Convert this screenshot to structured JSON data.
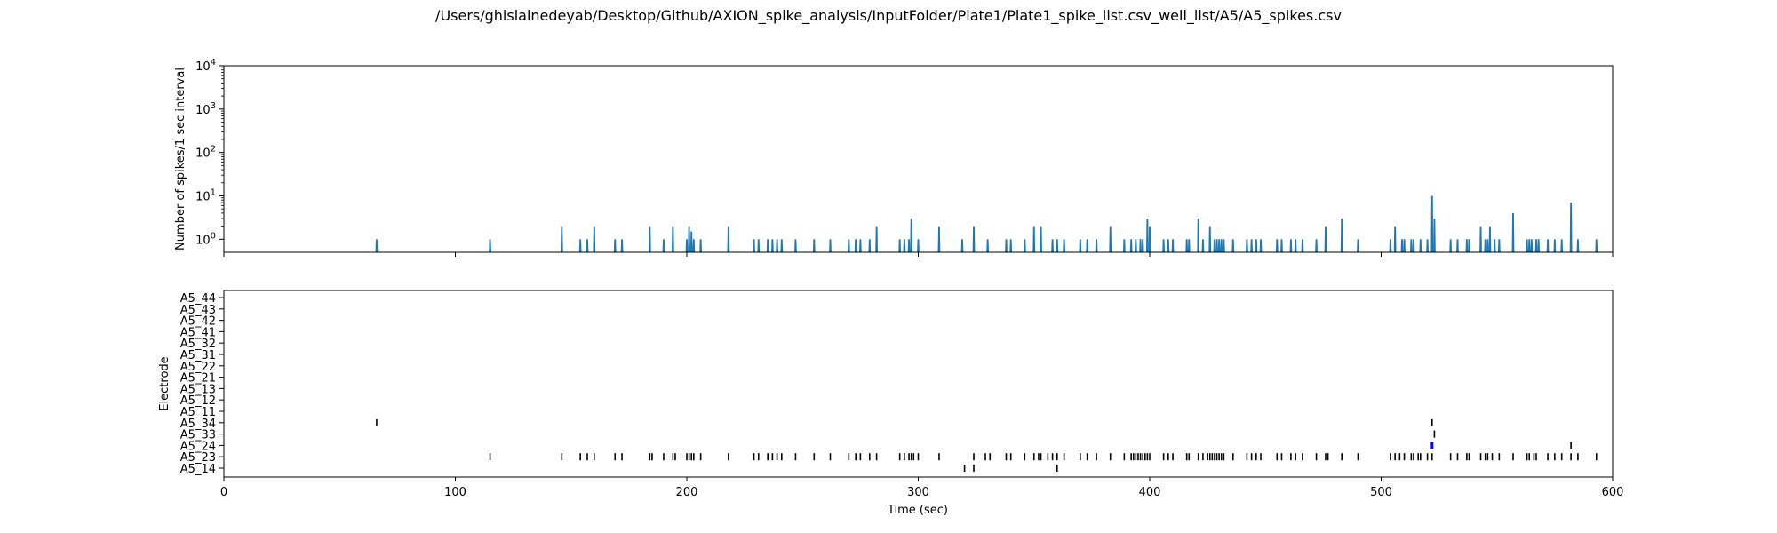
{
  "chart_data": [
    {
      "type": "line",
      "title": "/Users/ghislainedeyab/Desktop/Github/AXION_spike_analysis/InputFolder/Plate1/Plate1_spike_list.csv_well_list/A5/A5_spikes.csv",
      "xlabel": "",
      "ylabel": "Number of spikes/1 sec interval",
      "yscale": "log",
      "xlim": [
        0,
        600
      ],
      "ylim": [
        0.5,
        10000
      ],
      "y_ticks": [
        {
          "base": "10",
          "exp": "0",
          "value": 1
        },
        {
          "base": "10",
          "exp": "1",
          "value": 10
        },
        {
          "base": "10",
          "exp": "2",
          "value": 100
        },
        {
          "base": "10",
          "exp": "3",
          "value": 1000
        },
        {
          "base": "10",
          "exp": "4",
          "value": 10000
        }
      ],
      "color": "#1f77b4",
      "bins": [
        [
          66,
          1
        ],
        [
          115,
          1
        ],
        [
          146,
          2
        ],
        [
          154,
          1
        ],
        [
          157,
          1
        ],
        [
          160,
          2
        ],
        [
          169,
          1
        ],
        [
          172,
          1
        ],
        [
          184,
          2
        ],
        [
          190,
          1
        ],
        [
          194,
          2
        ],
        [
          200,
          1
        ],
        [
          201,
          2
        ],
        [
          202,
          1.5
        ],
        [
          203,
          1
        ],
        [
          206,
          1
        ],
        [
          218,
          2
        ],
        [
          229,
          1
        ],
        [
          231,
          1
        ],
        [
          235,
          1
        ],
        [
          237,
          1
        ],
        [
          239,
          1
        ],
        [
          241,
          1
        ],
        [
          247,
          1
        ],
        [
          255,
          1
        ],
        [
          262,
          1
        ],
        [
          270,
          1
        ],
        [
          273,
          1
        ],
        [
          275,
          1
        ],
        [
          279,
          1
        ],
        [
          282,
          2
        ],
        [
          292,
          1
        ],
        [
          294,
          1
        ],
        [
          296,
          1
        ],
        [
          297,
          3
        ],
        [
          300,
          1
        ],
        [
          309,
          2
        ],
        [
          319,
          1
        ],
        [
          324,
          2
        ],
        [
          330,
          1
        ],
        [
          338,
          1
        ],
        [
          340,
          1
        ],
        [
          346,
          1
        ],
        [
          350,
          2
        ],
        [
          353,
          2
        ],
        [
          358,
          1
        ],
        [
          360,
          1
        ],
        [
          363,
          1
        ],
        [
          370,
          1
        ],
        [
          373,
          1
        ],
        [
          377,
          1
        ],
        [
          383,
          2
        ],
        [
          389,
          1
        ],
        [
          392,
          1
        ],
        [
          394,
          1
        ],
        [
          396,
          1
        ],
        [
          397,
          1
        ],
        [
          399,
          3
        ],
        [
          400,
          2
        ],
        [
          406,
          1
        ],
        [
          408,
          1
        ],
        [
          410,
          1
        ],
        [
          416,
          1
        ],
        [
          417,
          1
        ],
        [
          421,
          3
        ],
        [
          423,
          1
        ],
        [
          426,
          2
        ],
        [
          428,
          1
        ],
        [
          429,
          1
        ],
        [
          430,
          1
        ],
        [
          431,
          1
        ],
        [
          432,
          1
        ],
        [
          436,
          1
        ],
        [
          442,
          1
        ],
        [
          444,
          1
        ],
        [
          446,
          1
        ],
        [
          448,
          1
        ],
        [
          455,
          1
        ],
        [
          457,
          1
        ],
        [
          461,
          1
        ],
        [
          463,
          1
        ],
        [
          466,
          1
        ],
        [
          472,
          1
        ],
        [
          476,
          2
        ],
        [
          483,
          3
        ],
        [
          490,
          1
        ],
        [
          504,
          1
        ],
        [
          506,
          2
        ],
        [
          509,
          1
        ],
        [
          510,
          1
        ],
        [
          513,
          1
        ],
        [
          514,
          1
        ],
        [
          517,
          1
        ],
        [
          520,
          1
        ],
        [
          522,
          10
        ],
        [
          523,
          3
        ],
        [
          530,
          1
        ],
        [
          533,
          1
        ],
        [
          537,
          1
        ],
        [
          538,
          1
        ],
        [
          543,
          2
        ],
        [
          545,
          1
        ],
        [
          546,
          1
        ],
        [
          547,
          2
        ],
        [
          549,
          1
        ],
        [
          551,
          1
        ],
        [
          557,
          4
        ],
        [
          563,
          1
        ],
        [
          564,
          1
        ],
        [
          565,
          1
        ],
        [
          567,
          1
        ],
        [
          568,
          1
        ],
        [
          572,
          1
        ],
        [
          575,
          1
        ],
        [
          578,
          1
        ],
        [
          582,
          7
        ],
        [
          585,
          1
        ],
        [
          593,
          1
        ]
      ]
    },
    {
      "type": "raster",
      "xlabel": "Time (sec)",
      "ylabel": "Electrode",
      "xlim": [
        0,
        600
      ],
      "x_ticks": [
        "0",
        "100",
        "200",
        "300",
        "400",
        "500",
        "600"
      ],
      "electrodes": [
        "A5_14",
        "A5_23",
        "A5_24",
        "A5_33",
        "A5_34",
        "A5_11",
        "A5_12",
        "A5_13",
        "A5_21",
        "A5_22",
        "A5_31",
        "A5_32",
        "A5_41",
        "A5_42",
        "A5_43",
        "A5_44"
      ],
      "spike_color": "#000000",
      "highlight_color": "#0000ff",
      "spikes": {
        "A5_14": [
          320,
          324,
          360
        ],
        "A5_23": [
          115,
          146,
          154,
          157,
          160,
          169,
          172,
          184,
          185,
          190,
          194,
          195,
          200,
          201,
          202,
          203,
          206,
          218,
          229,
          231,
          235,
          237,
          239,
          241,
          247,
          255,
          262,
          270,
          273,
          275,
          279,
          282,
          292,
          294,
          296,
          297,
          298,
          300,
          309,
          324,
          329,
          331,
          338,
          340,
          346,
          350,
          352,
          353,
          356,
          358,
          360,
          363,
          370,
          373,
          377,
          383,
          389,
          392,
          393,
          394,
          395,
          396,
          397,
          398,
          399,
          400,
          406,
          408,
          410,
          416,
          417,
          421,
          423,
          425,
          426,
          427,
          428,
          429,
          430,
          431,
          432,
          436,
          442,
          444,
          446,
          448,
          455,
          457,
          461,
          463,
          466,
          472,
          476,
          477,
          483,
          490,
          504,
          506,
          508,
          510,
          513,
          514,
          516,
          517,
          520,
          522,
          530,
          533,
          537,
          538,
          543,
          545,
          546,
          548,
          551,
          557,
          563,
          564,
          566,
          567,
          572,
          575,
          578,
          582,
          585,
          593
        ],
        "A5_24": [
          582
        ],
        "A5_33": [
          523
        ],
        "A5_34": [
          66,
          522
        ]
      },
      "highlights": {
        "A5_24": [
          522
        ]
      }
    }
  ]
}
